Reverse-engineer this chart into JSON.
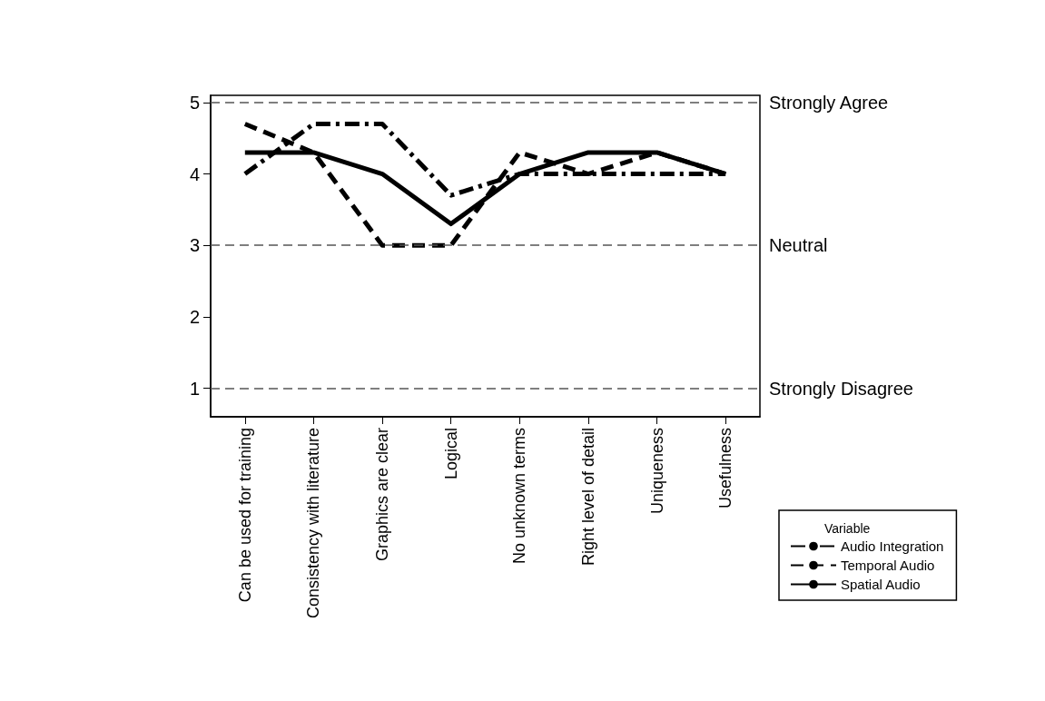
{
  "chart_data": {
    "type": "line",
    "categories": [
      "Can be used for training",
      "Consistency with literature",
      "Graphics are clear",
      "Logical",
      "No unknown terms",
      "Right level of detail",
      "Uniqueness",
      "Usefulness"
    ],
    "series": [
      {
        "name": "Audio Integration",
        "color": "#000000",
        "line_style": "dashdot",
        "values": [
          4.0,
          4.7,
          4.7,
          3.7,
          4.0,
          4.0,
          4.0,
          4.0
        ]
      },
      {
        "name": "Temporal Audio",
        "color": "#000000",
        "line_style": "dashed",
        "values": [
          4.7,
          4.3,
          3.0,
          3.0,
          4.3,
          4.0,
          4.3,
          4.0
        ]
      },
      {
        "name": "Spatial Audio",
        "color": "#000000",
        "line_style": "solid",
        "values": [
          4.3,
          4.3,
          4.0,
          3.3,
          4.0,
          4.3,
          4.3,
          4.0
        ]
      }
    ],
    "ylim": [
      0.6,
      5.1
    ],
    "yticks": [
      1,
      2,
      3,
      4,
      5
    ],
    "ref_lines": [
      {
        "axis": "y",
        "value": 5,
        "label": "Strongly Agree",
        "color": "#555555",
        "line_style": "dashed"
      },
      {
        "axis": "y",
        "value": 3,
        "label": "Neutral",
        "color": "#555555",
        "line_style": "dashed"
      },
      {
        "axis": "y",
        "value": 1,
        "label": "Strongly Disagree",
        "color": "#555555",
        "line_style": "dashed"
      }
    ],
    "legend": "right",
    "legend_title": "Variable",
    "marker": "none",
    "grid": false
  }
}
